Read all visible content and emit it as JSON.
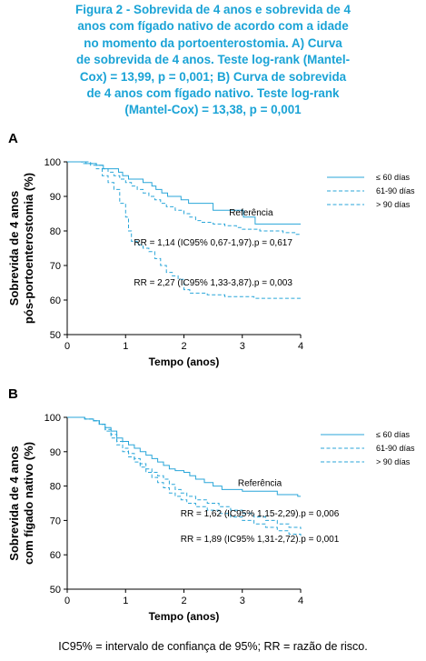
{
  "caption": {
    "lines": [
      "Figura 2 - Sobrevida de 4 anos e sobrevida de 4",
      "anos com fígado nativo de acordo com a idade",
      "no momento da portoenterostomia. A) Curva",
      "de sobrevida de 4 anos. Teste log-rank (Mantel-",
      "Cox) = 13,99, p = 0,001; B) Curva de sobrevida",
      "de 4 anos com fígado nativo. Teste log-rank",
      "(Mantel-Cox) = 13,38, p = 0,001"
    ]
  },
  "footnote": "IC95% = intervalo de confiança de 95%; RR = razão de risco.",
  "colors": {
    "accent": "#1aa3d6",
    "line": "#29a6d9"
  },
  "chart_data": [
    {
      "panel_label": "A",
      "type": "line",
      "xlabel": "Tempo (anos)",
      "ylabel": [
        "Sobrevida de 4 anos",
        "pós-portoenterostomia (%)"
      ],
      "xlim": [
        0,
        4
      ],
      "ylim": [
        50,
        100
      ],
      "xticks": [
        "0",
        "1",
        "2",
        "3",
        "4"
      ],
      "yticks": [
        "50",
        "60",
        "70",
        "80",
        "90",
        "100"
      ],
      "legend_position": "top-right",
      "series": [
        {
          "name": "≤ 60 días",
          "style": "solid",
          "x": [
            0,
            0.32,
            0.5,
            0.62,
            0.88,
            0.95,
            1.05,
            1.3,
            1.45,
            1.52,
            1.62,
            1.72,
            1.95,
            2.08,
            2.5,
            3.02,
            3.22,
            4.0
          ],
          "y": [
            100,
            99.5,
            99,
            98,
            97,
            96,
            95,
            94,
            93,
            92,
            91,
            90,
            89,
            88,
            86,
            84,
            82,
            82
          ]
        },
        {
          "name": "61-90 días",
          "style": "dashed",
          "x": [
            0,
            0.25,
            0.5,
            0.6,
            0.7,
            0.8,
            0.9,
            1.0,
            1.1,
            1.2,
            1.3,
            1.4,
            1.5,
            1.6,
            1.7,
            1.85,
            2.0,
            2.1,
            2.2,
            2.3,
            2.5,
            2.7,
            2.9,
            3.0,
            3.3,
            3.7,
            3.9,
            4.0
          ],
          "y": [
            100,
            99.5,
            99,
            98,
            97,
            96,
            95,
            94,
            93,
            92,
            91,
            90,
            89,
            88,
            87,
            86,
            85,
            84,
            83,
            82.5,
            82,
            81.5,
            81,
            80.5,
            80,
            79.5,
            79,
            79
          ]
        },
        {
          "name": "> 90 días",
          "style": "dashed",
          "x": [
            0,
            0.4,
            0.5,
            0.6,
            0.7,
            0.8,
            0.9,
            1.0,
            1.05,
            1.1,
            1.2,
            1.3,
            1.4,
            1.5,
            1.6,
            1.7,
            1.8,
            1.9,
            2.0,
            2.1,
            2.4,
            2.7,
            3.2,
            4.0
          ],
          "y": [
            100,
            99,
            98,
            96,
            94,
            92,
            88,
            84,
            80,
            77,
            76,
            75,
            74,
            72,
            70,
            68,
            67,
            66,
            63,
            62,
            61.5,
            61,
            60.5,
            60.5
          ]
        }
      ],
      "annotations": [
        {
          "text": "Referência",
          "x": 3.15,
          "y": 84.5
        },
        {
          "text": "RR = 1,14 (IC95% 0,67-1,97).p = 0,617",
          "x": 2.5,
          "y": 75.8
        },
        {
          "text": "RR = 2,27 (IC95% 1,33-3,87).p = 0,003",
          "x": 2.5,
          "y": 64.2
        }
      ]
    },
    {
      "panel_label": "B",
      "type": "line",
      "xlabel": "Tempo (anos)",
      "ylabel": [
        "Sobrevida de 4 anos",
        "com fígado nativo (%)"
      ],
      "xlim": [
        0,
        4
      ],
      "ylim": [
        50,
        100
      ],
      "xticks": [
        "0",
        "1",
        "2",
        "3",
        "4"
      ],
      "yticks": [
        "50",
        "60",
        "70",
        "80",
        "90",
        "100"
      ],
      "legend_position": "top-right",
      "series": [
        {
          "name": "≤ 60 días",
          "style": "solid",
          "x": [
            0,
            0.3,
            0.45,
            0.55,
            0.65,
            0.75,
            0.85,
            0.95,
            1.05,
            1.15,
            1.25,
            1.35,
            1.45,
            1.55,
            1.65,
            1.75,
            1.85,
            2.0,
            2.1,
            2.2,
            2.35,
            2.5,
            2.65,
            3.0,
            3.6,
            3.95,
            4.0
          ],
          "y": [
            100,
            99.5,
            99,
            98,
            97,
            96,
            94,
            93,
            92,
            91,
            90,
            89,
            88,
            87,
            86,
            85,
            84.5,
            84,
            83,
            82,
            81,
            80,
            79,
            78.5,
            77.5,
            77,
            77
          ]
        },
        {
          "name": "61-90 días",
          "style": "dashed",
          "x": [
            0,
            0.3,
            0.45,
            0.55,
            0.65,
            0.75,
            0.85,
            0.95,
            1.05,
            1.15,
            1.25,
            1.35,
            1.45,
            1.55,
            1.65,
            1.75,
            1.85,
            1.95,
            2.05,
            2.2,
            2.4,
            2.6,
            2.8,
            3.0,
            3.2,
            3.4,
            3.6,
            3.8,
            4.0
          ],
          "y": [
            100,
            99.5,
            99,
            98,
            96.5,
            95,
            93,
            91,
            89.5,
            88,
            86.5,
            85,
            84,
            83,
            82,
            80.5,
            79,
            78,
            77,
            76,
            75,
            74,
            73,
            72,
            71,
            70,
            69,
            68,
            67.5
          ]
        },
        {
          "name": "> 90 días",
          "style": "dashed",
          "x": [
            0,
            0.3,
            0.45,
            0.55,
            0.65,
            0.75,
            0.85,
            0.95,
            1.05,
            1.15,
            1.25,
            1.35,
            1.45,
            1.55,
            1.65,
            1.75,
            1.85,
            1.95,
            2.05,
            2.2,
            2.4,
            2.6,
            2.8,
            3.0,
            3.2,
            3.4,
            3.6,
            3.8,
            4.0
          ],
          "y": [
            100,
            99.5,
            99,
            98,
            96,
            94,
            92,
            90,
            88.5,
            87,
            85.5,
            84,
            82.5,
            81,
            79.5,
            78,
            77,
            76,
            75,
            74,
            73,
            72,
            71,
            70,
            69,
            68,
            67,
            66,
            65.5
          ]
        }
      ],
      "annotations": [
        {
          "text": "Referência",
          "x": 3.3,
          "y": 80
        },
        {
          "text": "RR = 1,62 (IC95% 1,15-2,29).p = 0,006",
          "x": 3.3,
          "y": 71.2
        },
        {
          "text": "RR = 1,89 (IC95% 1,31-2,72).p = 0,001",
          "x": 3.3,
          "y": 63.8
        }
      ]
    }
  ]
}
